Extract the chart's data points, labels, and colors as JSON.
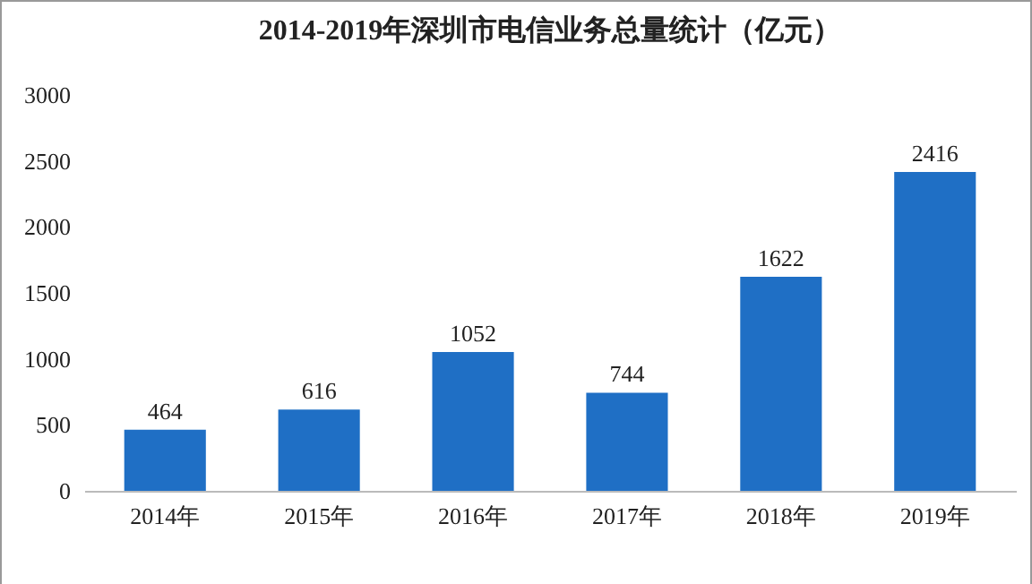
{
  "chart_data": {
    "type": "bar",
    "title": "2014-2019年深圳市电信业务总量统计（亿元）",
    "categories": [
      "2014年",
      "2015年",
      "2016年",
      "2017年",
      "2018年",
      "2019年"
    ],
    "values": [
      464,
      616,
      1052,
      744,
      1622,
      2416
    ],
    "color": "#1f6fc5",
    "ylim": [
      0,
      3000
    ],
    "yticks": [
      0,
      500,
      1000,
      1500,
      2000,
      2500,
      3000
    ],
    "grid": false,
    "data_labels": true
  }
}
